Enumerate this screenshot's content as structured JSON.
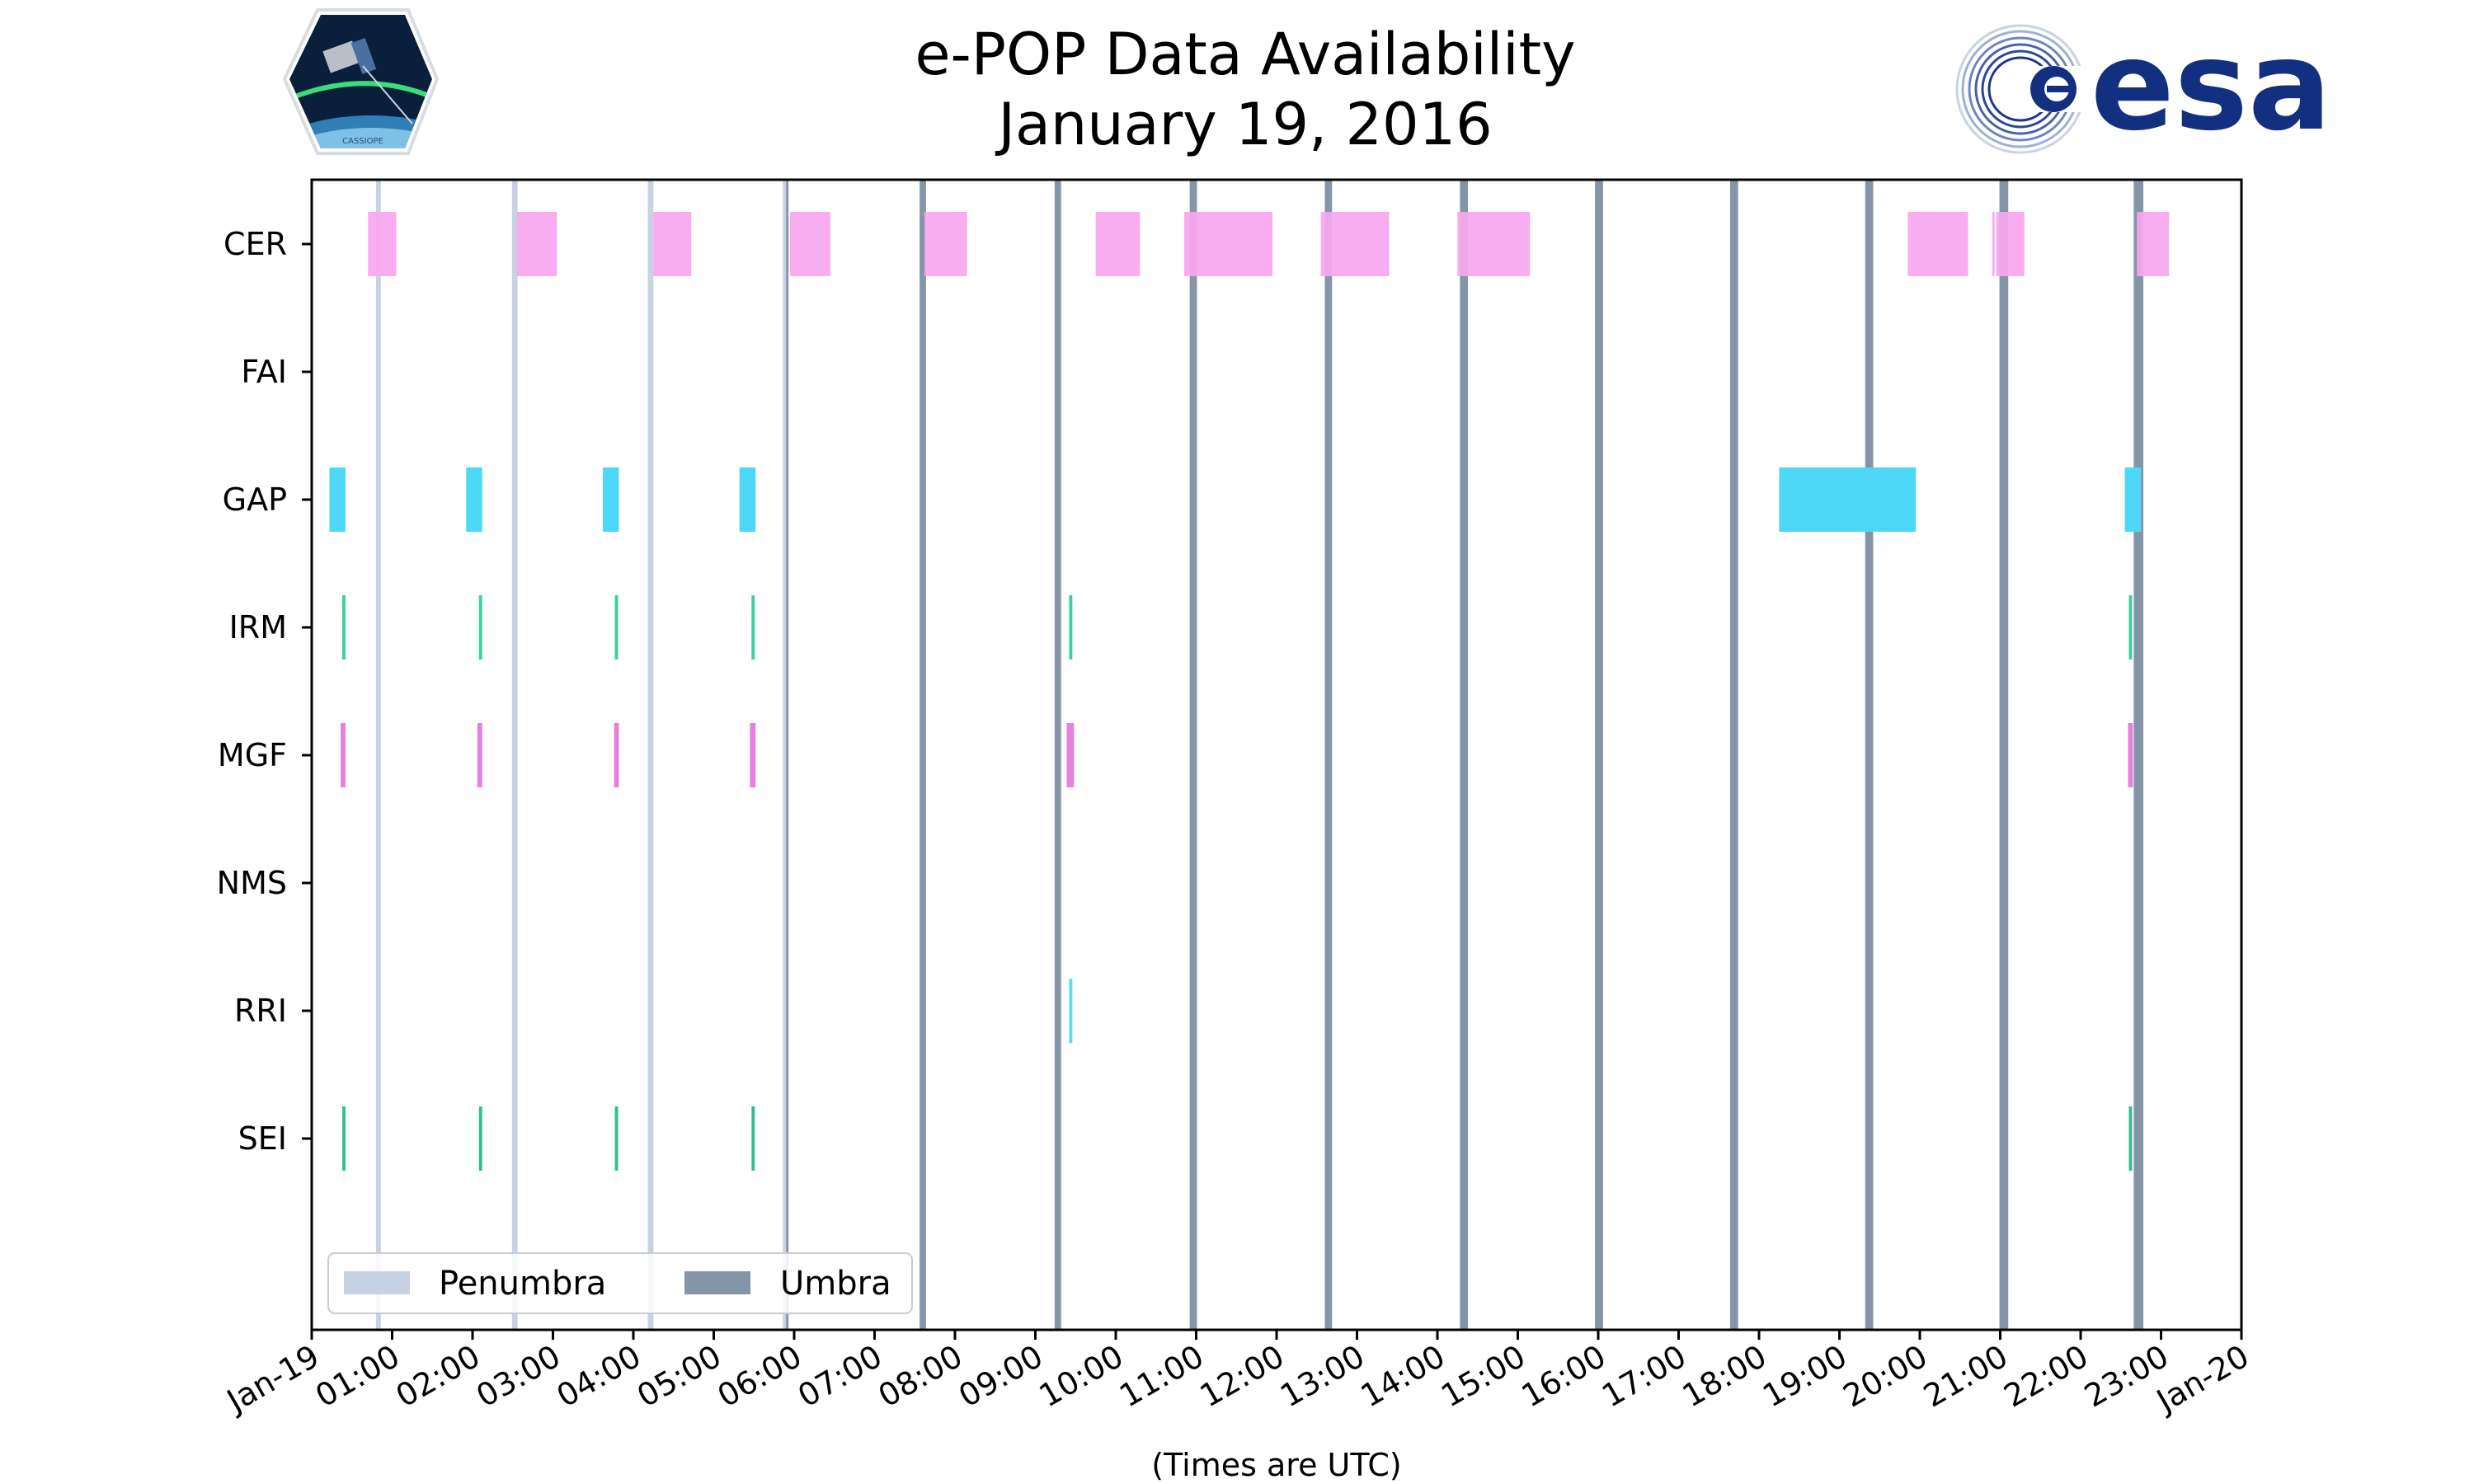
{
  "logos": {
    "left": {
      "caption": "CASSIOPE"
    },
    "right": {
      "wordmark": "esa"
    }
  },
  "colors": {
    "CER": "#f9a6f0",
    "GAP": "#4dd8f7",
    "IRM": "#3ccfa0",
    "MGF": "#e87ee0",
    "RRI": "#5fd9ef",
    "SEI": "#2fbf8c",
    "penumbra": "#c6d2e3",
    "umbra": "#8595a8",
    "esa": "#132f80"
  },
  "chart_data": {
    "type": "timeline",
    "title": [
      "e-POP Data Availability",
      "January 19, 2016"
    ],
    "xlabel": "(Times are UTC)",
    "x_unit": "hours since 2016-01-19 00:00 UTC",
    "xlim": [
      0,
      24
    ],
    "x_ticks": [
      {
        "hour": 0,
        "label": "Jan-19"
      },
      {
        "hour": 1,
        "label": "01:00"
      },
      {
        "hour": 2,
        "label": "02:00"
      },
      {
        "hour": 3,
        "label": "03:00"
      },
      {
        "hour": 4,
        "label": "04:00"
      },
      {
        "hour": 5,
        "label": "05:00"
      },
      {
        "hour": 6,
        "label": "06:00"
      },
      {
        "hour": 7,
        "label": "07:00"
      },
      {
        "hour": 8,
        "label": "08:00"
      },
      {
        "hour": 9,
        "label": "09:00"
      },
      {
        "hour": 10,
        "label": "10:00"
      },
      {
        "hour": 11,
        "label": "11:00"
      },
      {
        "hour": 12,
        "label": "12:00"
      },
      {
        "hour": 13,
        "label": "13:00"
      },
      {
        "hour": 14,
        "label": "14:00"
      },
      {
        "hour": 15,
        "label": "15:00"
      },
      {
        "hour": 16,
        "label": "16:00"
      },
      {
        "hour": 17,
        "label": "17:00"
      },
      {
        "hour": 18,
        "label": "18:00"
      },
      {
        "hour": 19,
        "label": "19:00"
      },
      {
        "hour": 20,
        "label": "20:00"
      },
      {
        "hour": 21,
        "label": "21:00"
      },
      {
        "hour": 22,
        "label": "22:00"
      },
      {
        "hour": 23,
        "label": "23:00"
      },
      {
        "hour": 24,
        "label": "Jan-20"
      }
    ],
    "instruments": [
      "CER",
      "FAI",
      "GAP",
      "IRM",
      "MGF",
      "NMS",
      "RRI",
      "SEI"
    ],
    "series": [
      {
        "name": "CER",
        "intervals": [
          [
            0.7,
            0.72
          ],
          [
            0.72,
            1.05
          ],
          [
            2.55,
            3.05
          ],
          [
            4.25,
            4.72
          ],
          [
            5.95,
            6.45
          ],
          [
            7.62,
            7.66
          ],
          [
            7.66,
            8.15
          ],
          [
            9.75,
            9.78
          ],
          [
            9.78,
            10.3
          ],
          [
            10.85,
            11.95
          ],
          [
            12.55,
            13.4
          ],
          [
            14.25,
            15.15
          ],
          [
            19.85,
            19.88
          ],
          [
            19.88,
            20.6
          ],
          [
            20.9,
            20.93
          ],
          [
            20.95,
            21.3
          ],
          [
            22.7,
            22.73
          ],
          [
            22.73,
            23.1
          ]
        ]
      },
      {
        "name": "FAI",
        "intervals": []
      },
      {
        "name": "GAP",
        "intervals": [
          [
            0.22,
            0.42
          ],
          [
            1.92,
            2.12
          ],
          [
            3.62,
            3.82
          ],
          [
            5.32,
            5.52
          ],
          [
            18.25,
            19.95
          ],
          [
            22.55,
            22.75
          ]
        ]
      },
      {
        "name": "IRM",
        "intervals": [
          [
            0.38,
            0.42
          ],
          [
            2.08,
            2.12
          ],
          [
            3.77,
            3.81
          ],
          [
            5.47,
            5.51
          ],
          [
            9.42,
            9.46
          ],
          [
            22.6,
            22.64
          ]
        ]
      },
      {
        "name": "MGF",
        "intervals": [
          [
            0.36,
            0.42
          ],
          [
            2.06,
            2.12
          ],
          [
            3.76,
            3.82
          ],
          [
            5.45,
            5.52
          ],
          [
            9.39,
            9.48
          ],
          [
            22.59,
            22.65
          ]
        ]
      },
      {
        "name": "NMS",
        "intervals": []
      },
      {
        "name": "RRI",
        "intervals": [
          [
            9.42,
            9.46
          ]
        ]
      },
      {
        "name": "SEI",
        "intervals": [
          [
            0.38,
            0.42
          ],
          [
            2.08,
            2.12
          ],
          [
            3.77,
            3.81
          ],
          [
            5.47,
            5.51
          ],
          [
            22.6,
            22.64
          ]
        ]
      }
    ],
    "eclipses": [
      {
        "type": "penumbra",
        "start": 0.8,
        "end": 0.86
      },
      {
        "type": "penumbra",
        "start": 2.49,
        "end": 2.56
      },
      {
        "type": "penumbra",
        "start": 4.18,
        "end": 4.25
      },
      {
        "type": "penumbra",
        "start": 5.86,
        "end": 5.92
      },
      {
        "type": "umbra",
        "start": 5.9,
        "end": 5.93
      },
      {
        "type": "umbra",
        "start": 7.56,
        "end": 7.64
      },
      {
        "type": "umbra",
        "start": 9.24,
        "end": 9.32
      },
      {
        "type": "umbra",
        "start": 10.92,
        "end": 11.01
      },
      {
        "type": "umbra",
        "start": 12.6,
        "end": 12.69
      },
      {
        "type": "umbra",
        "start": 14.28,
        "end": 14.38
      },
      {
        "type": "umbra",
        "start": 15.96,
        "end": 16.06
      },
      {
        "type": "umbra",
        "start": 17.64,
        "end": 17.74
      },
      {
        "type": "umbra",
        "start": 19.32,
        "end": 19.42
      },
      {
        "type": "umbra",
        "start": 20.99,
        "end": 21.1
      },
      {
        "type": "umbra",
        "start": 22.66,
        "end": 22.78
      }
    ],
    "legend": {
      "placement": "lower-left",
      "entries": [
        {
          "label": "Penumbra",
          "color_key": "penumbra"
        },
        {
          "label": "Umbra",
          "color_key": "umbra"
        }
      ]
    }
  }
}
